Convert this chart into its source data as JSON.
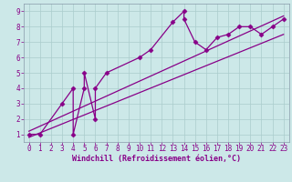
{
  "xlabel": "Windchill (Refroidissement éolien,°C)",
  "bg_color": "#cce8e8",
  "grid_color": "#aacccc",
  "line_color": "#880088",
  "xlim": [
    -0.5,
    23.5
  ],
  "ylim": [
    0.5,
    9.5
  ],
  "xticks": [
    0,
    1,
    2,
    3,
    4,
    5,
    6,
    7,
    8,
    9,
    10,
    11,
    12,
    13,
    14,
    15,
    16,
    17,
    18,
    19,
    20,
    21,
    22,
    23
  ],
  "yticks": [
    1,
    2,
    3,
    4,
    5,
    6,
    7,
    8,
    9
  ],
  "data_x": [
    0,
    1,
    3,
    4,
    4,
    5,
    5,
    6,
    6,
    7,
    10,
    11,
    13,
    14,
    14,
    15,
    16,
    17,
    18,
    19,
    20,
    21,
    22,
    23
  ],
  "data_y": [
    1,
    1,
    3,
    4,
    1,
    4,
    5,
    2,
    4,
    5,
    6,
    6.5,
    8.3,
    9,
    8.5,
    7,
    6.5,
    7.3,
    7.5,
    8,
    8,
    7.5,
    8,
    8.5
  ],
  "line1_x": [
    0,
    23
  ],
  "line1_y": [
    1.2,
    8.7
  ],
  "line2_x": [
    0,
    23
  ],
  "line2_y": [
    0.8,
    7.5
  ],
  "fontsize_xlabel": 6.0,
  "fontsize_ticks": 5.5,
  "linewidth": 0.9,
  "marker_size": 2.5
}
